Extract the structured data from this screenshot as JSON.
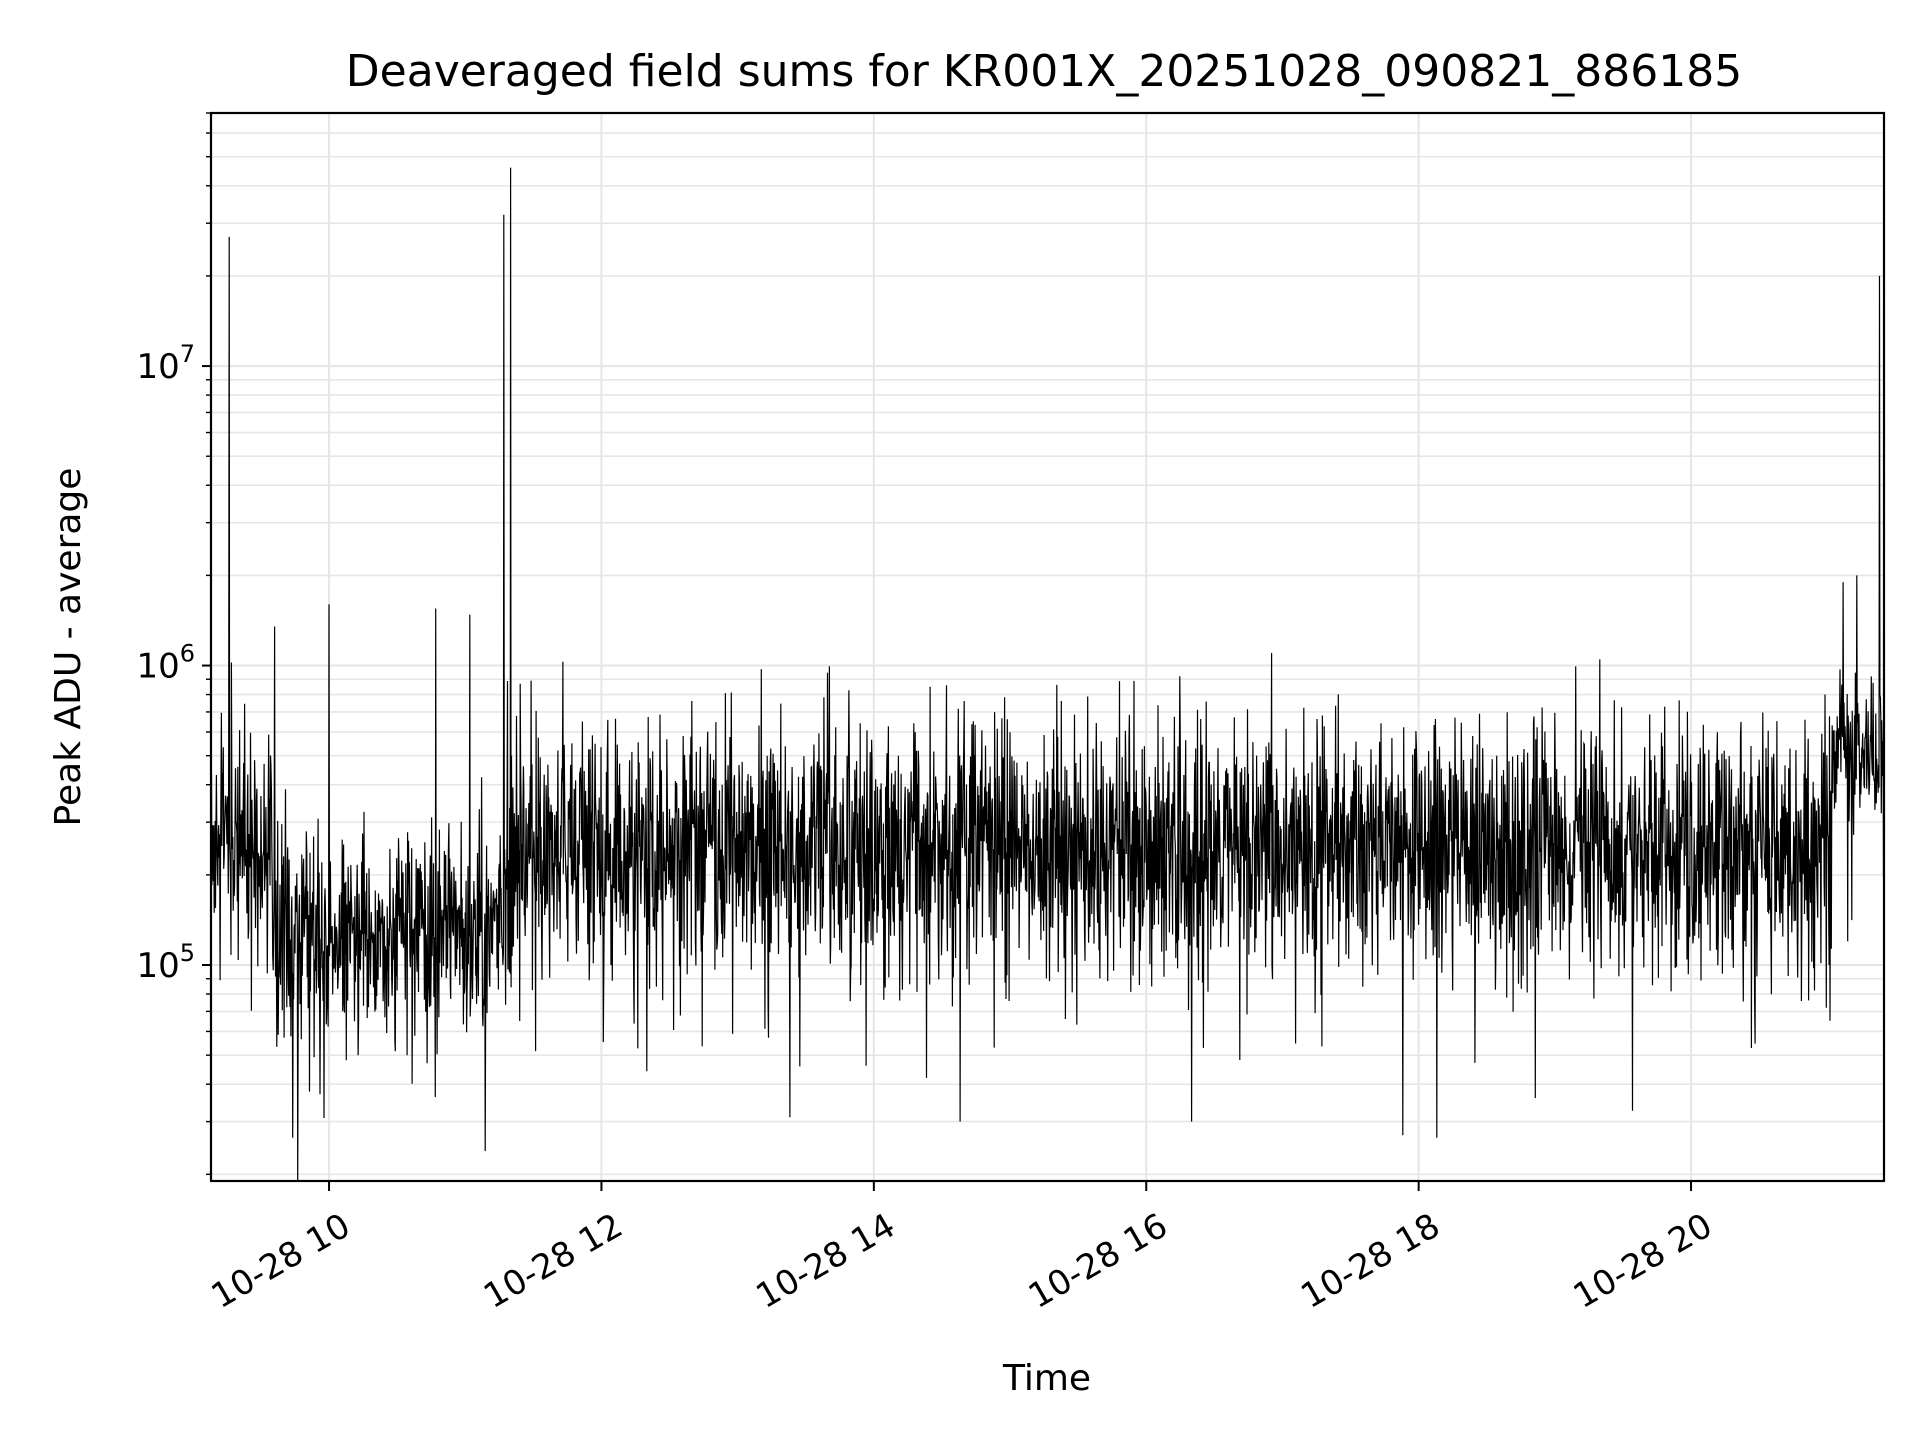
{
  "chart_data": {
    "type": "line",
    "title": "Deaveraged field sums for KR001X_20251028_090821_886185",
    "xlabel": "Time",
    "ylabel": "Peak ADU - average",
    "x_axis": {
      "kind": "time",
      "range": [
        "2025-10-28T09:08",
        "2025-10-28T21:25"
      ],
      "ticks": [
        {
          "value": "2025-10-28T10:00",
          "label": "10-28 10"
        },
        {
          "value": "2025-10-28T12:00",
          "label": "10-28 12"
        },
        {
          "value": "2025-10-28T14:00",
          "label": "10-28 14"
        },
        {
          "value": "2025-10-28T16:00",
          "label": "10-28 16"
        },
        {
          "value": "2025-10-28T18:00",
          "label": "10-28 18"
        },
        {
          "value": "2025-10-28T20:00",
          "label": "10-28 20"
        }
      ]
    },
    "y_axis": {
      "scale": "log",
      "range": [
        19000,
        70000000
      ],
      "ticks": [
        {
          "value": 100000,
          "base": "10",
          "exp": "5"
        },
        {
          "value": 1000000,
          "base": "10",
          "exp": "6"
        },
        {
          "value": 10000000,
          "base": "10",
          "exp": "7"
        }
      ]
    },
    "grid": true,
    "line_color": "#000000",
    "grid_color": "#e6e6e6",
    "segments": [
      {
        "start": "2025-10-28T09:08",
        "end": "2025-10-28T09:35",
        "median": 280000,
        "spread": 0.45
      },
      {
        "start": "2025-10-28T09:35",
        "end": "2025-10-28T11:18",
        "median": 130000,
        "spread": 0.35
      },
      {
        "start": "2025-10-28T11:18",
        "end": "2025-10-28T21:02",
        "median": 250000,
        "spread": 0.42
      },
      {
        "start": "2025-10-28T21:02",
        "end": "2025-10-28T21:25",
        "median": 520000,
        "spread": 0.25
      }
    ],
    "spikes": [
      {
        "time": "2025-10-28T09:16",
        "value": 27000000
      },
      {
        "time": "2025-10-28T09:36",
        "value": 1350000
      },
      {
        "time": "2025-10-28T10:00",
        "value": 1600000
      },
      {
        "time": "2025-10-28T10:47",
        "value": 1550000
      },
      {
        "time": "2025-10-28T11:02",
        "value": 1480000
      },
      {
        "time": "2025-10-28T11:17",
        "value": 32000000
      },
      {
        "time": "2025-10-28T11:20",
        "value": 46000000
      },
      {
        "time": "2025-10-28T11:43",
        "value": 1030000
      },
      {
        "time": "2025-10-28T21:07",
        "value": 1900000
      },
      {
        "time": "2025-10-28T21:13",
        "value": 2000000
      },
      {
        "time": "2025-10-28T21:23",
        "value": 20000000
      }
    ],
    "dips": [
      {
        "time": "2025-10-28T09:56",
        "value": 37000
      },
      {
        "time": "2025-10-28T13:23",
        "value": 31000
      },
      {
        "time": "2025-10-28T14:38",
        "value": 30000
      },
      {
        "time": "2025-10-28T16:20",
        "value": 30000
      },
      {
        "time": "2025-10-28T17:53",
        "value": 27000
      },
      {
        "time": "2025-10-28T18:08",
        "value": 26500
      }
    ]
  }
}
